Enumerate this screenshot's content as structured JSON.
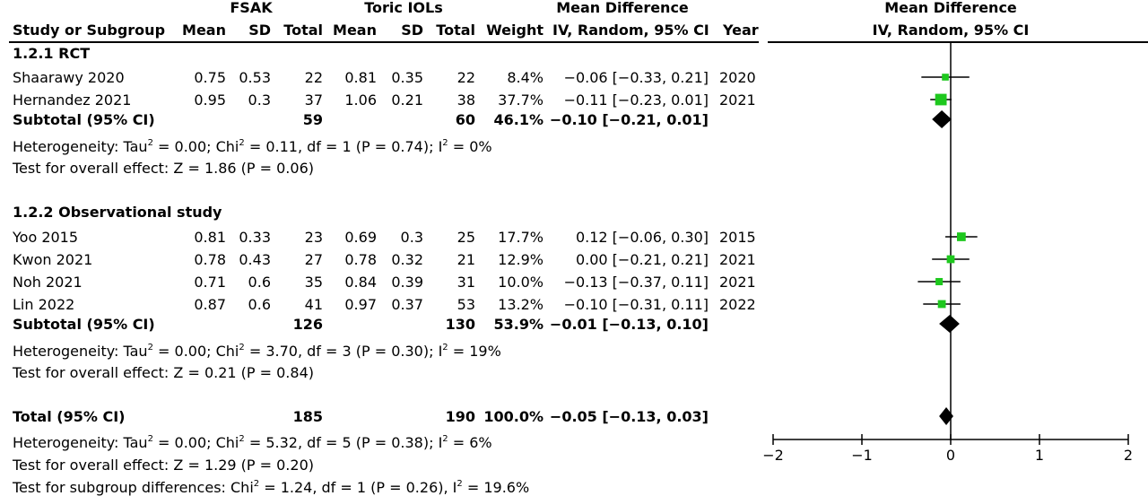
{
  "header": {
    "group1": "FSAK",
    "group2": "Toric IOLs",
    "md_title": "Mean Difference",
    "plot_title": "Mean Difference",
    "study_col": "Study or Subgroup",
    "mean1": "Mean",
    "sd1": "SD",
    "total1": "Total",
    "mean2": "Mean",
    "sd2": "SD",
    "total2": "Total",
    "weight": "Weight",
    "md_method": "IV, Random, 95% CI",
    "year": "Year",
    "plot_method": "IV, Random, 95% CI"
  },
  "subgroups": [
    {
      "title": "1.2.1 RCT",
      "subtotal": {
        "label": "Subtotal (95% CI)",
        "total1": "59",
        "total2": "60",
        "weight": "46.1%",
        "ci": "−0.10 [−0.21, 0.01]"
      },
      "het": {
        "a": "Heterogeneity: Tau",
        "b": " = 0.00; Chi",
        "c": " = 0.11, df = 1 (P = 0.74); I",
        "d": " = 0%",
        "sup": "2"
      },
      "overall": "Test for overall effect: Z = 1.86 (P = 0.06)"
    },
    {
      "title": "1.2.2 Observational study",
      "subtotal": {
        "label": "Subtotal (95% CI)",
        "total1": "126",
        "total2": "130",
        "weight": "53.9%",
        "ci": "−0.01 [−0.13, 0.10]"
      },
      "het": {
        "a": "Heterogeneity: Tau",
        "b": " = 0.00; Chi",
        "c": " = 3.70, df = 3 (P = 0.30); I",
        "d": " = 19%",
        "sup": "2"
      },
      "overall": "Test for overall effect: Z = 0.21 (P = 0.84)"
    }
  ],
  "studies": [
    {
      "name": "Shaarawy 2020",
      "mean1": "0.75",
      "sd1": "0.53",
      "total1": "22",
      "mean2": "0.81",
      "sd2": "0.35",
      "total2": "22",
      "weight": "8.4%",
      "ci": "−0.06 [−0.33, 0.21]",
      "year": "2020"
    },
    {
      "name": "Hernandez 2021",
      "mean1": "0.95",
      "sd1": "0.3",
      "total1": "37",
      "mean2": "1.06",
      "sd2": "0.21",
      "total2": "38",
      "weight": "37.7%",
      "ci": "−0.11 [−0.23, 0.01]",
      "year": "2021"
    },
    {
      "name": "Yoo 2015",
      "mean1": "0.81",
      "sd1": "0.33",
      "total1": "23",
      "mean2": "0.69",
      "sd2": "0.3",
      "total2": "25",
      "weight": "17.7%",
      "ci": "0.12 [−0.06, 0.30]",
      "year": "2015"
    },
    {
      "name": "Kwon 2021",
      "mean1": "0.78",
      "sd1": "0.43",
      "total1": "27",
      "mean2": "0.78",
      "sd2": "0.32",
      "total2": "21",
      "weight": "12.9%",
      "ci": "0.00 [−0.21, 0.21]",
      "year": "2021"
    },
    {
      "name": "Noh 2021",
      "mean1": "0.71",
      "sd1": "0.6",
      "total1": "35",
      "mean2": "0.84",
      "sd2": "0.39",
      "total2": "31",
      "weight": "10.0%",
      "ci": "−0.13 [−0.37, 0.11]",
      "year": "2021"
    },
    {
      "name": "Lin 2022",
      "mean1": "0.87",
      "sd1": "0.6",
      "total1": "41",
      "mean2": "0.97",
      "sd2": "0.37",
      "total2": "53",
      "weight": "13.2%",
      "ci": "−0.10 [−0.31, 0.11]",
      "year": "2022"
    }
  ],
  "total": {
    "label": "Total (95% CI)",
    "total1": "185",
    "total2": "190",
    "weight": "100.0%",
    "ci": "−0.05 [−0.13, 0.03]",
    "het": {
      "a": "Heterogeneity: Tau",
      "b": " = 0.00; Chi",
      "c": " = 5.32, df = 5 (P = 0.38); I",
      "d": " = 6%",
      "sup": "2"
    },
    "overall": "Test for overall effect: Z = 1.29 (P = 0.20)",
    "subgroup_diff": {
      "a": "Test for subgroup differences: Chi",
      "b": " = 1.24, df = 1 (P = 0.26), I",
      "c": " = 19.6%",
      "sup": "2"
    }
  },
  "colors": {
    "square": "#1ec81e",
    "diamond": "#000000",
    "line": "#000000"
  },
  "chart_data": {
    "type": "forest",
    "xlim": [
      -2,
      2
    ],
    "ticks": [
      -2,
      -1,
      0,
      1,
      2
    ],
    "tick_labels": [
      "−2",
      "−1",
      "0",
      "1",
      "2"
    ],
    "studies": [
      {
        "name": "Shaarawy 2020",
        "est": -0.06,
        "lo": -0.33,
        "hi": 0.21,
        "weight": 8.4
      },
      {
        "name": "Hernandez 2021",
        "est": -0.11,
        "lo": -0.23,
        "hi": 0.01,
        "weight": 37.7
      },
      {
        "name": "Yoo 2015",
        "est": 0.12,
        "lo": -0.06,
        "hi": 0.3,
        "weight": 17.7
      },
      {
        "name": "Kwon 2021",
        "est": 0.0,
        "lo": -0.21,
        "hi": 0.21,
        "weight": 12.9
      },
      {
        "name": "Noh 2021",
        "est": -0.13,
        "lo": -0.37,
        "hi": 0.11,
        "weight": 10.0
      },
      {
        "name": "Lin 2022",
        "est": -0.1,
        "lo": -0.31,
        "hi": 0.11,
        "weight": 13.2
      }
    ],
    "pooled": [
      {
        "name": "Subtotal RCT",
        "est": -0.1,
        "lo": -0.21,
        "hi": 0.01
      },
      {
        "name": "Subtotal Observational",
        "est": -0.01,
        "lo": -0.13,
        "hi": 0.1
      },
      {
        "name": "Total",
        "est": -0.05,
        "lo": -0.13,
        "hi": 0.03
      }
    ]
  }
}
